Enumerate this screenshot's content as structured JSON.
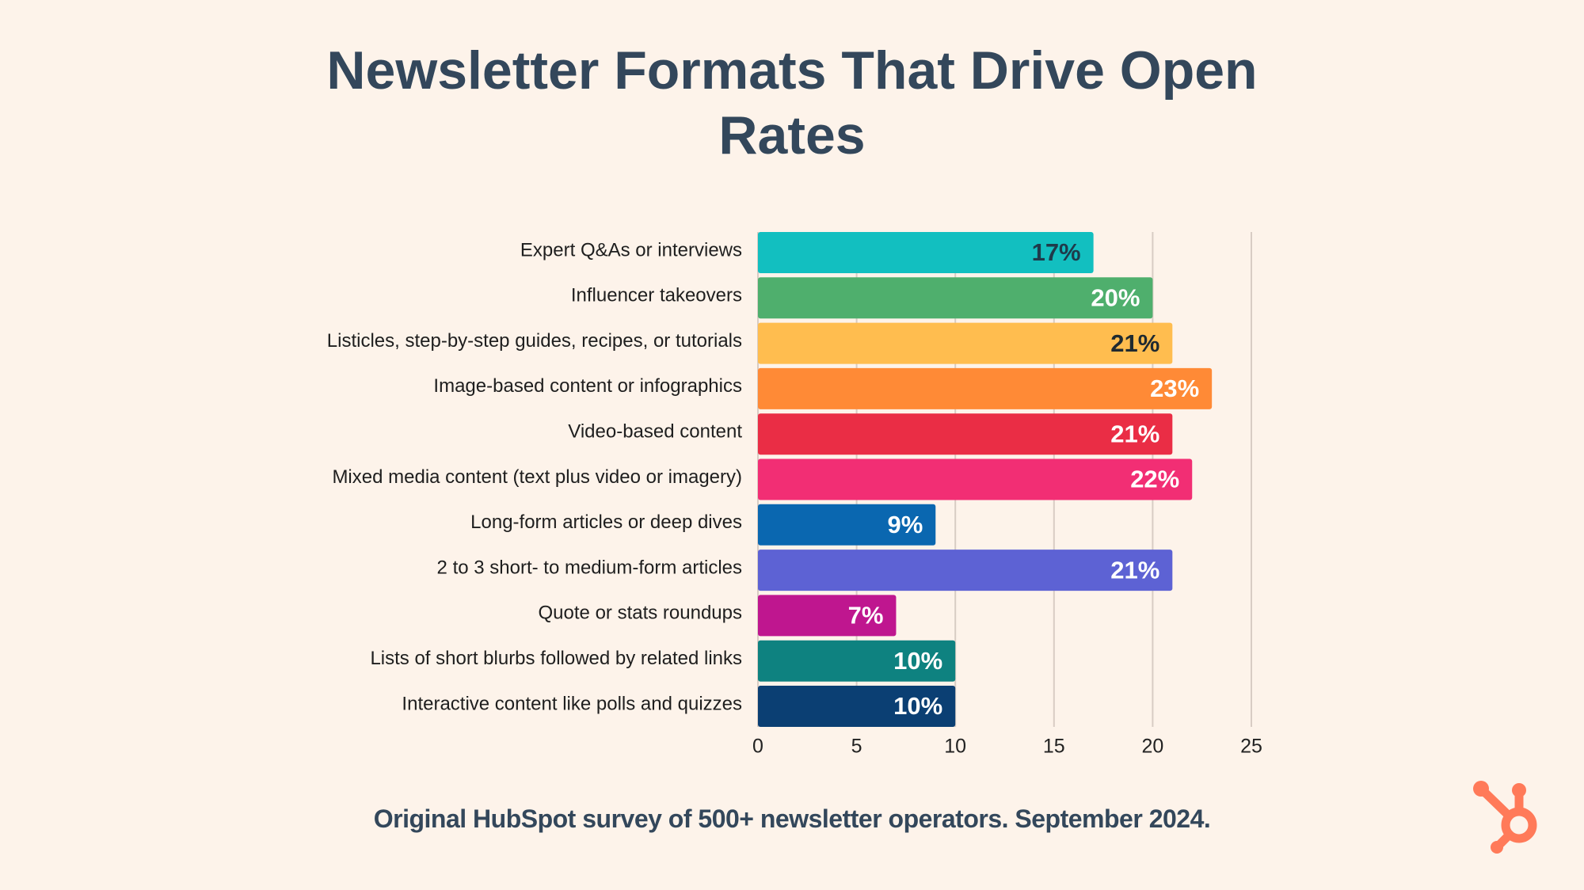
{
  "chart_data": {
    "type": "barh",
    "title": "Newsletter Formats That Drive Open Rates",
    "source": "Original HubSpot survey of 500+ newsletter operators. September 2024.",
    "categories": [
      "Expert Q&As or interviews",
      "Influencer takeovers",
      "Listicles, step-by-step guides, recipes, or tutorials",
      "Image-based content or infographics",
      "Video-based content",
      "Mixed media content (text plus video or imagery)",
      "Long-form articles or deep dives",
      "2 to 3 short- to medium-form articles",
      "Quote or stats roundups",
      "Lists of short blurbs followed by related links",
      "Interactive content like polls and quizzes"
    ],
    "values": [
      17,
      20,
      21,
      23,
      21,
      22,
      9,
      21,
      7,
      10,
      10
    ],
    "value_labels": [
      "17%",
      "20%",
      "21%",
      "23%",
      "21%",
      "22%",
      "9%",
      "21%",
      "7%",
      "10%",
      "10%"
    ],
    "colors": [
      "#12bfc0",
      "#4faf6d",
      "#ffbd4f",
      "#ff8a36",
      "#ea2d45",
      "#f22e74",
      "#0a67b0",
      "#5d62d4",
      "#bf168f",
      "#0e8280",
      "#0b3f73"
    ],
    "value_label_colors": [
      "#1f3a4a",
      "#ffffff",
      "#1f2a30",
      "#ffffff",
      "#ffffff",
      "#ffffff",
      "#ffffff",
      "#ffffff",
      "#ffffff",
      "#ffffff",
      "#ffffff"
    ],
    "xlim": [
      0,
      25
    ],
    "xticks": [
      0,
      5,
      10,
      15,
      20,
      25
    ],
    "grid": true
  }
}
